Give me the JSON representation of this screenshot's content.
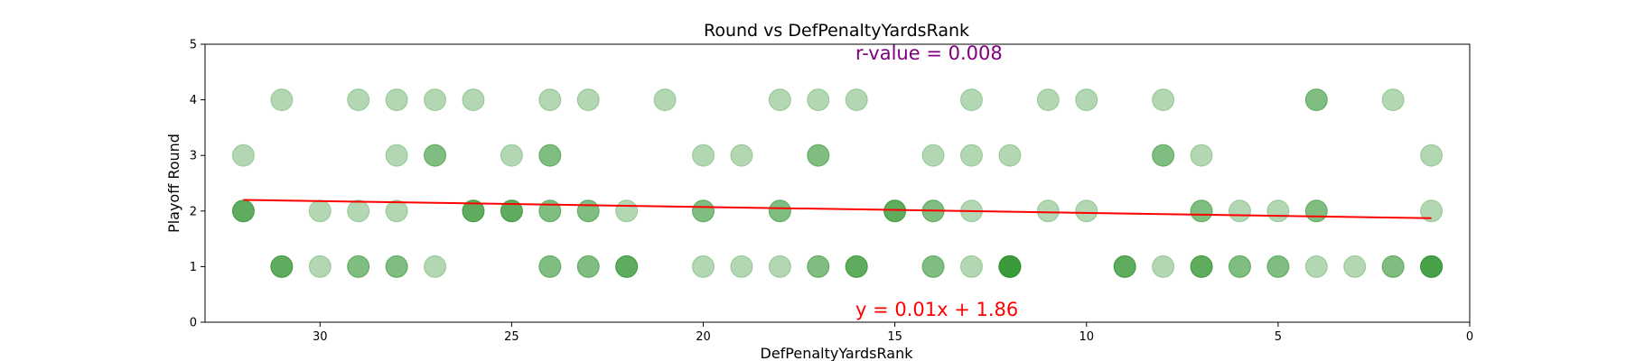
{
  "chart_data": {
    "type": "scatter",
    "title": "Round vs DefPenaltyYardsRank",
    "xlabel": "DefPenaltyYardsRank",
    "ylabel": "Playoff Round",
    "xlim": [
      33,
      0
    ],
    "ylim": [
      0,
      5
    ],
    "x_ticks": [
      30,
      25,
      20,
      15,
      10,
      5,
      0
    ],
    "y_ticks": [
      0,
      1,
      2,
      3,
      4,
      5
    ],
    "x_tick_labels": [
      "30",
      "25",
      "20",
      "15",
      "10",
      "5",
      "0"
    ],
    "y_tick_labels": [
      "0",
      "1",
      "2",
      "3",
      "4",
      "5"
    ],
    "grid": false,
    "marker_color": "#228B22",
    "marker_alpha": 0.35,
    "line_color": "#ff0000",
    "r_value_text": "r-value = 0.008",
    "r_value_color": "#800080",
    "equation_text": "y = 0.01x + 1.86",
    "equation_color": "#ff0000",
    "regression_line": {
      "x": [
        32,
        1
      ],
      "y": [
        2.2,
        1.87
      ]
    },
    "points": [
      {
        "x": 32,
        "y": 3
      },
      {
        "x": 31,
        "y": 4
      },
      {
        "x": 29,
        "y": 4
      },
      {
        "x": 28,
        "y": 4
      },
      {
        "x": 27,
        "y": 4
      },
      {
        "x": 26,
        "y": 4
      },
      {
        "x": 24,
        "y": 4
      },
      {
        "x": 23,
        "y": 4
      },
      {
        "x": 21,
        "y": 4
      },
      {
        "x": 18,
        "y": 4
      },
      {
        "x": 17,
        "y": 4
      },
      {
        "x": 16,
        "y": 4
      },
      {
        "x": 13,
        "y": 4
      },
      {
        "x": 11,
        "y": 4
      },
      {
        "x": 10,
        "y": 4
      },
      {
        "x": 8,
        "y": 4
      },
      {
        "x": 4,
        "y": 4
      },
      {
        "x": 4,
        "y": 4
      },
      {
        "x": 2,
        "y": 4
      },
      {
        "x": 28,
        "y": 3
      },
      {
        "x": 27,
        "y": 3
      },
      {
        "x": 27,
        "y": 3
      },
      {
        "x": 25,
        "y": 3
      },
      {
        "x": 24,
        "y": 3
      },
      {
        "x": 24,
        "y": 3
      },
      {
        "x": 20,
        "y": 3
      },
      {
        "x": 19,
        "y": 3
      },
      {
        "x": 17,
        "y": 3
      },
      {
        "x": 17,
        "y": 3
      },
      {
        "x": 14,
        "y": 3
      },
      {
        "x": 13,
        "y": 3
      },
      {
        "x": 12,
        "y": 3
      },
      {
        "x": 8,
        "y": 3
      },
      {
        "x": 8,
        "y": 3
      },
      {
        "x": 7,
        "y": 3
      },
      {
        "x": 1,
        "y": 3
      },
      {
        "x": 32,
        "y": 2
      },
      {
        "x": 32,
        "y": 2
      },
      {
        "x": 32,
        "y": 2
      },
      {
        "x": 30,
        "y": 2
      },
      {
        "x": 29,
        "y": 2
      },
      {
        "x": 28,
        "y": 2
      },
      {
        "x": 26,
        "y": 2
      },
      {
        "x": 26,
        "y": 2
      },
      {
        "x": 26,
        "y": 2
      },
      {
        "x": 25,
        "y": 2
      },
      {
        "x": 25,
        "y": 2
      },
      {
        "x": 25,
        "y": 2
      },
      {
        "x": 24,
        "y": 2
      },
      {
        "x": 24,
        "y": 2
      },
      {
        "x": 23,
        "y": 2
      },
      {
        "x": 23,
        "y": 2
      },
      {
        "x": 22,
        "y": 2
      },
      {
        "x": 20,
        "y": 2
      },
      {
        "x": 20,
        "y": 2
      },
      {
        "x": 18,
        "y": 2
      },
      {
        "x": 18,
        "y": 2
      },
      {
        "x": 15,
        "y": 2
      },
      {
        "x": 15,
        "y": 2
      },
      {
        "x": 15,
        "y": 2
      },
      {
        "x": 14,
        "y": 2
      },
      {
        "x": 14,
        "y": 2
      },
      {
        "x": 13,
        "y": 2
      },
      {
        "x": 11,
        "y": 2
      },
      {
        "x": 10,
        "y": 2
      },
      {
        "x": 7,
        "y": 2
      },
      {
        "x": 7,
        "y": 2
      },
      {
        "x": 6,
        "y": 2
      },
      {
        "x": 5,
        "y": 2
      },
      {
        "x": 4,
        "y": 2
      },
      {
        "x": 4,
        "y": 2
      },
      {
        "x": 1,
        "y": 2
      },
      {
        "x": 31,
        "y": 1
      },
      {
        "x": 31,
        "y": 1
      },
      {
        "x": 31,
        "y": 1
      },
      {
        "x": 30,
        "y": 1
      },
      {
        "x": 29,
        "y": 1
      },
      {
        "x": 29,
        "y": 1
      },
      {
        "x": 28,
        "y": 1
      },
      {
        "x": 28,
        "y": 1
      },
      {
        "x": 27,
        "y": 1
      },
      {
        "x": 24,
        "y": 1
      },
      {
        "x": 24,
        "y": 1
      },
      {
        "x": 23,
        "y": 1
      },
      {
        "x": 23,
        "y": 1
      },
      {
        "x": 22,
        "y": 1
      },
      {
        "x": 22,
        "y": 1
      },
      {
        "x": 22,
        "y": 1
      },
      {
        "x": 20,
        "y": 1
      },
      {
        "x": 19,
        "y": 1
      },
      {
        "x": 18,
        "y": 1
      },
      {
        "x": 17,
        "y": 1
      },
      {
        "x": 17,
        "y": 1
      },
      {
        "x": 16,
        "y": 1
      },
      {
        "x": 16,
        "y": 1
      },
      {
        "x": 16,
        "y": 1
      },
      {
        "x": 14,
        "y": 1
      },
      {
        "x": 14,
        "y": 1
      },
      {
        "x": 13,
        "y": 1
      },
      {
        "x": 12,
        "y": 1
      },
      {
        "x": 12,
        "y": 1
      },
      {
        "x": 12,
        "y": 1
      },
      {
        "x": 12,
        "y": 1
      },
      {
        "x": 12,
        "y": 1
      },
      {
        "x": 9,
        "y": 1
      },
      {
        "x": 9,
        "y": 1
      },
      {
        "x": 9,
        "y": 1
      },
      {
        "x": 8,
        "y": 1
      },
      {
        "x": 7,
        "y": 1
      },
      {
        "x": 7,
        "y": 1
      },
      {
        "x": 7,
        "y": 1
      },
      {
        "x": 6,
        "y": 1
      },
      {
        "x": 6,
        "y": 1
      },
      {
        "x": 5,
        "y": 1
      },
      {
        "x": 5,
        "y": 1
      },
      {
        "x": 4,
        "y": 1
      },
      {
        "x": 3,
        "y": 1
      },
      {
        "x": 2,
        "y": 1
      },
      {
        "x": 2,
        "y": 1
      },
      {
        "x": 1,
        "y": 1
      },
      {
        "x": 1,
        "y": 1
      },
      {
        "x": 1,
        "y": 1
      },
      {
        "x": 1,
        "y": 1
      }
    ]
  }
}
